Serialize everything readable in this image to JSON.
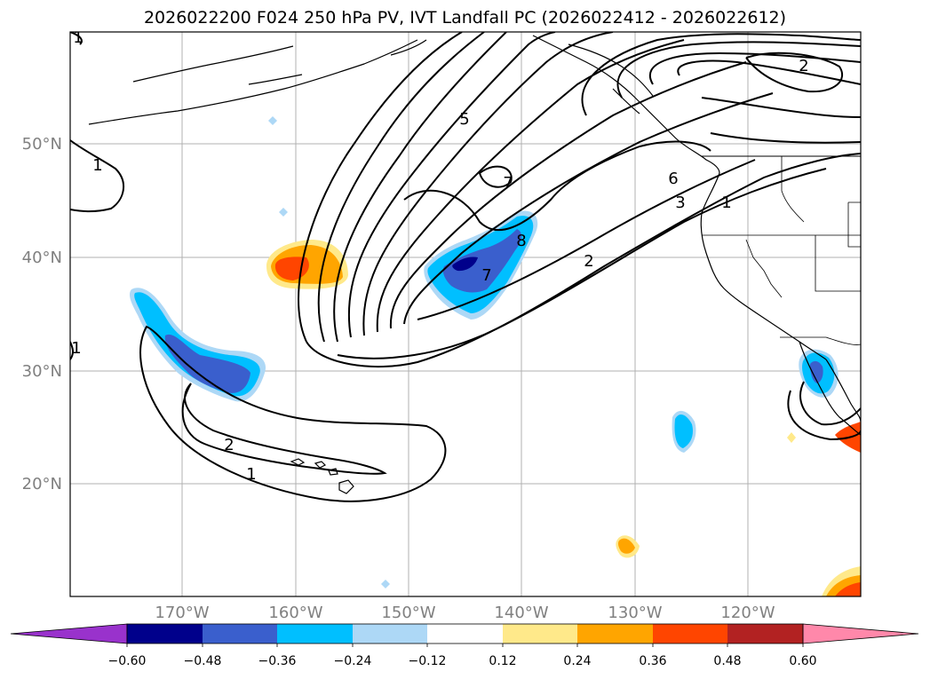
{
  "title": "2026022200 F024 250 hPa PV, IVT Landfall PC (2026022412 - 2026022612)",
  "map": {
    "lat_labels": [
      "50°N",
      "40°N",
      "30°N",
      "20°N"
    ],
    "lon_labels": [
      "170°W",
      "160°W",
      "150°W",
      "140°W",
      "130°W",
      "120°W"
    ],
    "contour_labels": [
      "1",
      "1",
      "1",
      "5",
      "2",
      "6",
      "3",
      "1",
      "7",
      "8",
      "7",
      "2",
      "2",
      "1"
    ],
    "colorbar": {
      "ticks": [
        "−0.60",
        "−0.48",
        "−0.36",
        "−0.24",
        "−0.12",
        "0.12",
        "0.24",
        "0.36",
        "0.48",
        "0.60"
      ],
      "colors": [
        "#9932cc",
        "#00008b",
        "#3a5fcd",
        "#00bfff",
        "#add8f6",
        "#ffffff",
        "#ffe98a",
        "#ffa500",
        "#ff4500",
        "#b22222",
        "#ff88aa"
      ]
    }
  }
}
